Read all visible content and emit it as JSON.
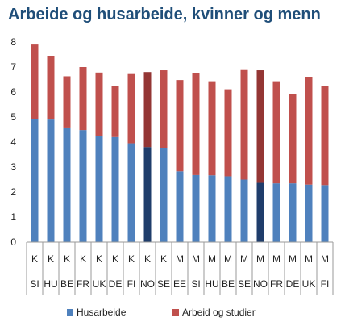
{
  "chart_data": {
    "type": "bar",
    "stacked": true,
    "title": "Arbeide og husarbeide, kvinner og menn",
    "xlabel": "",
    "ylabel": "",
    "ylim": [
      0,
      8
    ],
    "yticks": [
      "0",
      "1",
      "2",
      "3",
      "4",
      "5",
      "6",
      "7",
      "8"
    ],
    "grid": false,
    "legend_position": "bottom",
    "categories": [
      {
        "sex": "K",
        "country": "SI"
      },
      {
        "sex": "K",
        "country": "HU"
      },
      {
        "sex": "K",
        "country": "BE"
      },
      {
        "sex": "K",
        "country": "FR"
      },
      {
        "sex": "K",
        "country": "UK"
      },
      {
        "sex": "K",
        "country": "DE"
      },
      {
        "sex": "K",
        "country": "FI"
      },
      {
        "sex": "K",
        "country": "NO"
      },
      {
        "sex": "K",
        "country": "SE"
      },
      {
        "sex": "M",
        "country": "EE"
      },
      {
        "sex": "M",
        "country": "SI"
      },
      {
        "sex": "M",
        "country": "HU"
      },
      {
        "sex": "M",
        "country": "BE"
      },
      {
        "sex": "M",
        "country": "SE"
      },
      {
        "sex": "M",
        "country": "NO"
      },
      {
        "sex": "M",
        "country": "FR"
      },
      {
        "sex": "M",
        "country": "DE"
      },
      {
        "sex": "M",
        "country": "UK"
      },
      {
        "sex": "M",
        "country": "FI"
      }
    ],
    "highlight_index": [
      7,
      14
    ],
    "series": [
      {
        "name": "Husarbeide",
        "color": "#4f81bd",
        "highlight_color": "#1f3d6b",
        "values": [
          4.93,
          4.9,
          4.55,
          4.48,
          4.25,
          4.2,
          3.95,
          3.8,
          3.77,
          2.83,
          2.68,
          2.67,
          2.63,
          2.5,
          2.37,
          2.35,
          2.35,
          2.3,
          2.28
        ]
      },
      {
        "name": "Arbeid og studier",
        "color": "#c0504d",
        "highlight_color": "#943634",
        "values": [
          2.97,
          2.55,
          2.08,
          2.52,
          2.53,
          2.05,
          2.77,
          3.0,
          3.1,
          3.65,
          4.07,
          3.73,
          3.48,
          4.38,
          4.5,
          4.05,
          3.57,
          4.3,
          3.97
        ]
      }
    ]
  }
}
